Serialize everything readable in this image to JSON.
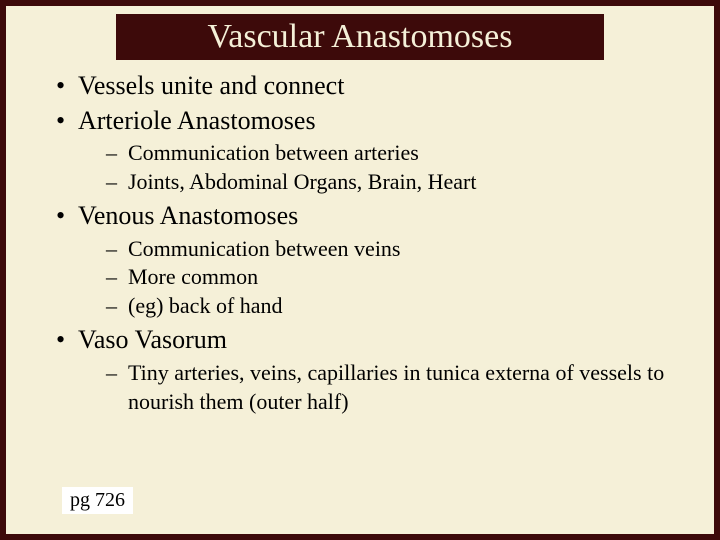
{
  "colors": {
    "background_outer": "#3d0a0a",
    "background_slide": "#f5f0d8",
    "title_bg": "#3d0a0a",
    "title_text": "#f5f0d8",
    "body_text": "#000000",
    "pg_box_bg": "#ffffff"
  },
  "typography": {
    "title_fontsize_pt": 34,
    "lvl1_fontsize_pt": 26,
    "lvl2_fontsize_pt": 22,
    "font_family": "Times New Roman"
  },
  "title": "Vascular Anastomoses",
  "bullets": {
    "b0": "Vessels unite and connect",
    "b1": "Arteriole Anastomoses",
    "b1_sub": {
      "s0": "Communication between arteries",
      "s1": "Joints, Abdominal Organs, Brain, Heart"
    },
    "b2": "Venous Anastomoses",
    "b2_sub": {
      "s0": "Communication between veins",
      "s1": "More common",
      "s2": "(eg) back of hand"
    },
    "b3": "Vaso Vasorum",
    "b3_sub": {
      "s0": "Tiny arteries, veins, capillaries in tunica externa of vessels to nourish them (outer half)"
    }
  },
  "page_ref": "pg 726"
}
